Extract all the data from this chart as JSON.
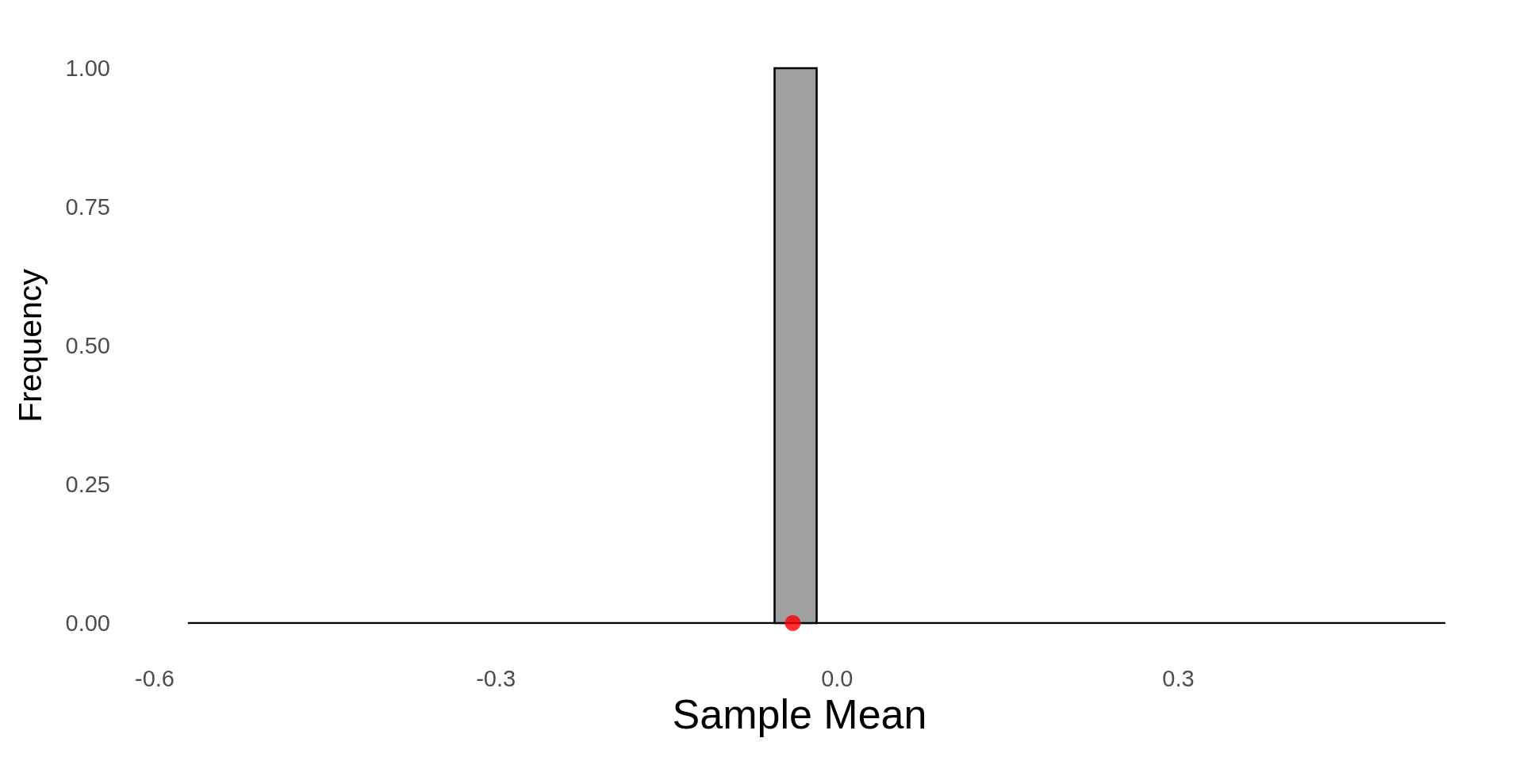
{
  "chart_data": {
    "type": "histogram",
    "xlabel": "Sample Mean",
    "ylabel": "Frequency",
    "bins": [
      -0.055,
      -0.018
    ],
    "series": [
      {
        "color": "#a0a0a0",
        "values": [
          1
        ]
      },
      {
        "type": "line",
        "color": "#000000",
        "x": [
          -0.57,
          0.534
        ],
        "values": [
          0,
          0
        ],
        "marker": "none"
      },
      {
        "type": "scatter",
        "color": "#ff0000",
        "x": [
          -0.039
        ],
        "values": [
          0
        ]
      }
    ],
    "xlim": [
      -0.6,
      0.534
    ],
    "ylim": [
      0,
      1
    ],
    "xticks": [
      -0.6,
      -0.3,
      {
        "value": 0,
        "label": "0.0"
      },
      0.3
    ],
    "yticks": [
      {
        "value": 0,
        "label": "0.00"
      },
      {
        "value": 0.25,
        "label": "0.25"
      },
      {
        "value": 0.5,
        "label": "0.50"
      },
      {
        "value": 0.75,
        "label": "0.75"
      },
      {
        "value": 1,
        "label": "1.00"
      }
    ],
    "grid": false,
    "marker": "circle",
    "line_style": "solid"
  }
}
